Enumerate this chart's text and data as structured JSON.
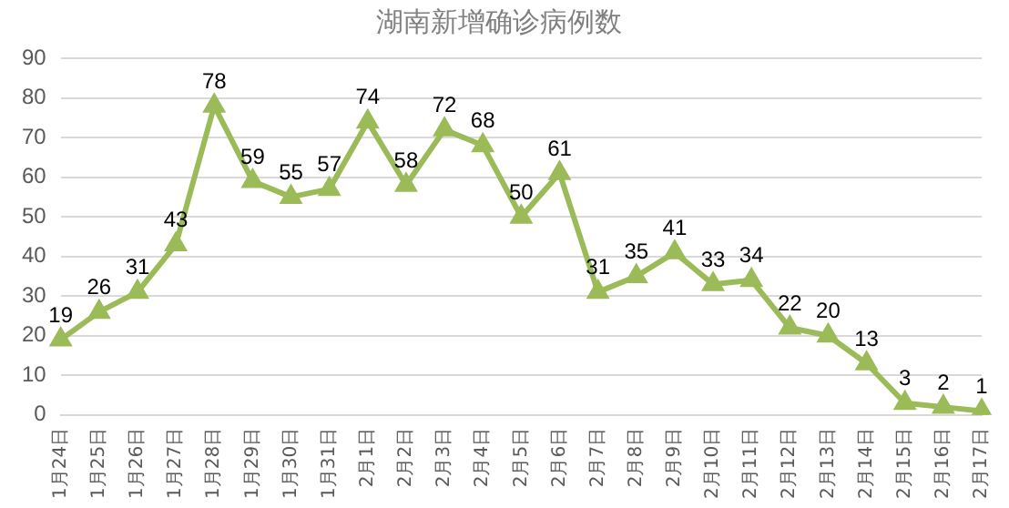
{
  "chart_data": {
    "type": "line",
    "title": "湖南新增确诊病例数",
    "categories": [
      "1月24日",
      "1月25日",
      "1月26日",
      "1月27日",
      "1月28日",
      "1月29日",
      "1月30日",
      "1月31日",
      "2月1日",
      "2月2日",
      "2月3日",
      "2月4日",
      "2月5日",
      "2月6日",
      "2月7日",
      "2月8日",
      "2月9日",
      "2月10日",
      "2月11日",
      "2月12日",
      "2月13日",
      "2月14日",
      "2月15日",
      "2月16日",
      "2月17日"
    ],
    "series": [
      {
        "color": "#9bbb59",
        "values": [
          19,
          26,
          31,
          43,
          78,
          59,
          55,
          57,
          74,
          58,
          72,
          68,
          50,
          61,
          31,
          35,
          41,
          33,
          34,
          22,
          20,
          13,
          3,
          2,
          1
        ]
      }
    ],
    "ylim": [
      0,
      90
    ],
    "yticks": [
      0,
      10,
      20,
      30,
      40,
      50,
      60,
      70,
      80,
      90
    ],
    "grid": "y",
    "legend": false,
    "marker": "triangle",
    "line_style": "solid",
    "data_labels": true
  }
}
